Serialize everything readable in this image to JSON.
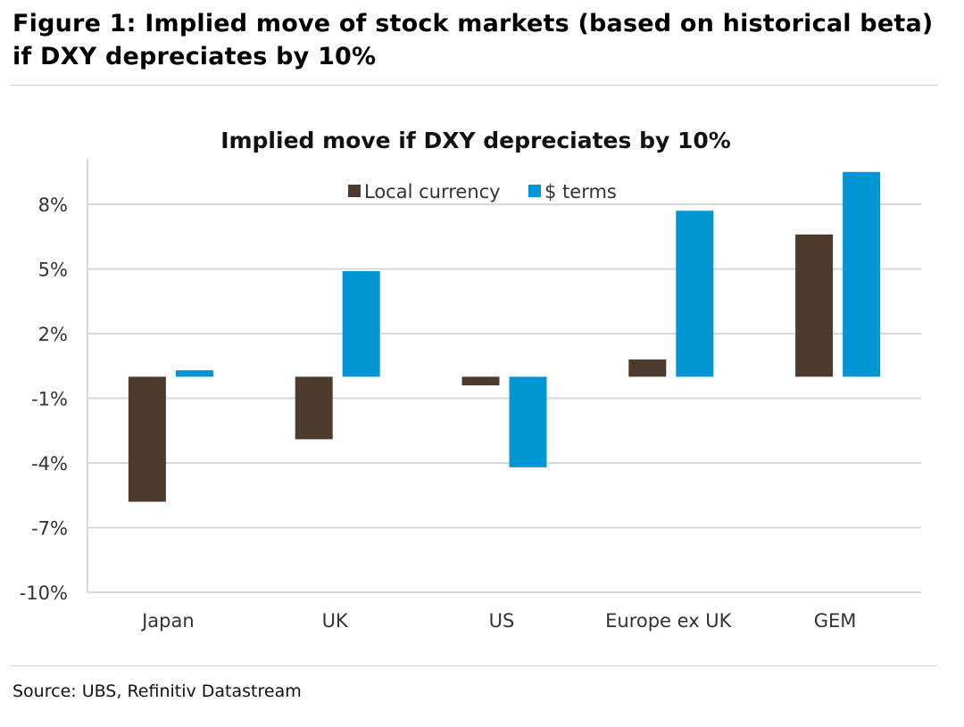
{
  "figure": {
    "title": "Figure 1: Implied move of stock markets (based on historical beta) if DXY depreciates by 10%",
    "source": "Source: UBS, Refinitiv Datastream"
  },
  "chart_data": {
    "type": "bar",
    "title": "Implied move if DXY depreciates by 10%",
    "xlabel": "",
    "ylabel": "",
    "categories": [
      "Japan",
      "UK",
      "US",
      "Europe ex UK",
      "GEM"
    ],
    "series": [
      {
        "name": "Local currency",
        "color": "#4e3b30",
        "values": [
          -5.8,
          -2.9,
          -0.4,
          0.8,
          6.6
        ]
      },
      {
        "name": "$ terms",
        "color": "#0096d6",
        "values": [
          0.3,
          4.9,
          -4.2,
          7.7,
          9.5
        ]
      }
    ],
    "ylim": [
      -10,
      10
    ],
    "yticks": [
      8,
      5,
      2,
      -1,
      -4,
      -7,
      -10
    ],
    "ytick_labels": [
      "8%",
      "5%",
      "2%",
      "-1%",
      "-4%",
      "-7%",
      "-10%"
    ],
    "grid": true,
    "legend_position": "top-center"
  }
}
